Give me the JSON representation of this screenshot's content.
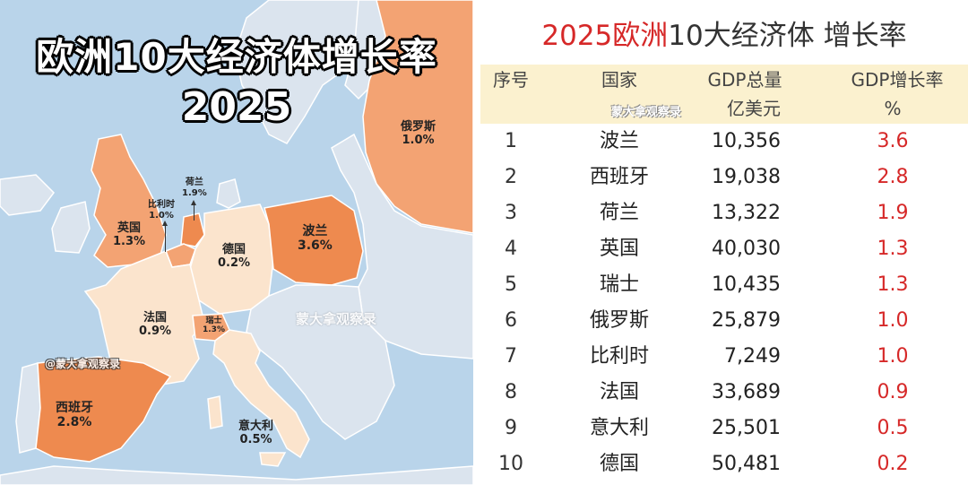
{
  "map": {
    "title_line1": "欧洲10大经济体增长率",
    "title_line2": "2025",
    "watermark_handle": "@蒙大拿观察录",
    "watermark_center": "蒙大拿观察录",
    "colors": {
      "sea": "#b9d4ea",
      "land_other": "#dbe4ee",
      "growth_high": "#ee8a4f",
      "growth_mid": "#f3a373",
      "growth_low": "#f7c9a2",
      "growth_lowest": "#fbe4cd"
    },
    "labels": [
      {
        "name": "俄罗斯",
        "value": "1.0%"
      },
      {
        "name": "荷兰",
        "value": "1.9%"
      },
      {
        "name": "比利时",
        "value": "1.0%"
      },
      {
        "name": "英国",
        "value": "1.3%"
      },
      {
        "name": "德国",
        "value": "0.2%"
      },
      {
        "name": "波兰",
        "value": "3.6%"
      },
      {
        "name": "法国",
        "value": "0.9%"
      },
      {
        "name": "瑞士",
        "value": "1.3%"
      },
      {
        "name": "西班牙",
        "value": "2.8%"
      },
      {
        "name": "意大利",
        "value": "0.5%"
      }
    ]
  },
  "table": {
    "title_accent": "2025欧洲",
    "title_rest": "10大经济体 增长率",
    "headers": {
      "rank": "序号",
      "country": "国家",
      "gdp_line1": "GDP总量",
      "gdp_line2": "亿美元",
      "growth_line1": "GDP增长率",
      "growth_line2": "%"
    },
    "watermark": "蒙大拿观察录",
    "rows": [
      {
        "rank": "1",
        "country": "波兰",
        "gdp": "10,356",
        "growth": "3.6"
      },
      {
        "rank": "2",
        "country": "西班牙",
        "gdp": "19,038",
        "growth": "2.8"
      },
      {
        "rank": "3",
        "country": "荷兰",
        "gdp": "13,322",
        "growth": "1.9"
      },
      {
        "rank": "4",
        "country": "英国",
        "gdp": "40,030",
        "growth": "1.3"
      },
      {
        "rank": "5",
        "country": "瑞士",
        "gdp": "10,435",
        "growth": "1.3"
      },
      {
        "rank": "6",
        "country": "俄罗斯",
        "gdp": "25,879",
        "growth": "1.0"
      },
      {
        "rank": "7",
        "country": "比利时",
        "gdp": "7,249",
        "growth": "1.0"
      },
      {
        "rank": "8",
        "country": "法国",
        "gdp": "33,689",
        "growth": "0.9"
      },
      {
        "rank": "9",
        "country": "意大利",
        "gdp": "25,501",
        "growth": "0.5"
      },
      {
        "rank": "10",
        "country": "德国",
        "gdp": "50,481",
        "growth": "0.2"
      }
    ]
  }
}
